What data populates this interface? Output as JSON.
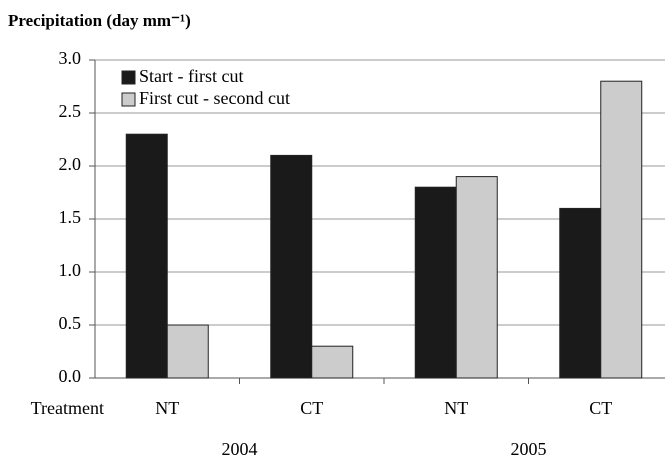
{
  "chart_data": {
    "type": "bar",
    "title": "Precipitation (day mm⁻¹)",
    "x_label": "Treatment",
    "categories": [
      "NT",
      "CT",
      "NT",
      "CT"
    ],
    "category_groups": [
      "2004",
      "2005"
    ],
    "series": [
      {
        "name": "Start - first cut",
        "color": "#1a1a1a",
        "values": [
          2.3,
          2.1,
          1.8,
          1.6
        ]
      },
      {
        "name": "First cut - second cut",
        "color": "#cccccc",
        "values": [
          0.5,
          0.3,
          1.9,
          2.8
        ]
      }
    ],
    "ylim": [
      0,
      3
    ],
    "yticks": [
      {
        "value": 0,
        "label": "0.0"
      },
      0.5,
      {
        "value": 1,
        "label": "1.0"
      },
      1.5,
      {
        "value": 2,
        "label": "2.0"
      },
      2.5,
      {
        "value": 3,
        "label": "3.0"
      }
    ],
    "grid": true,
    "legend": "top-left"
  }
}
